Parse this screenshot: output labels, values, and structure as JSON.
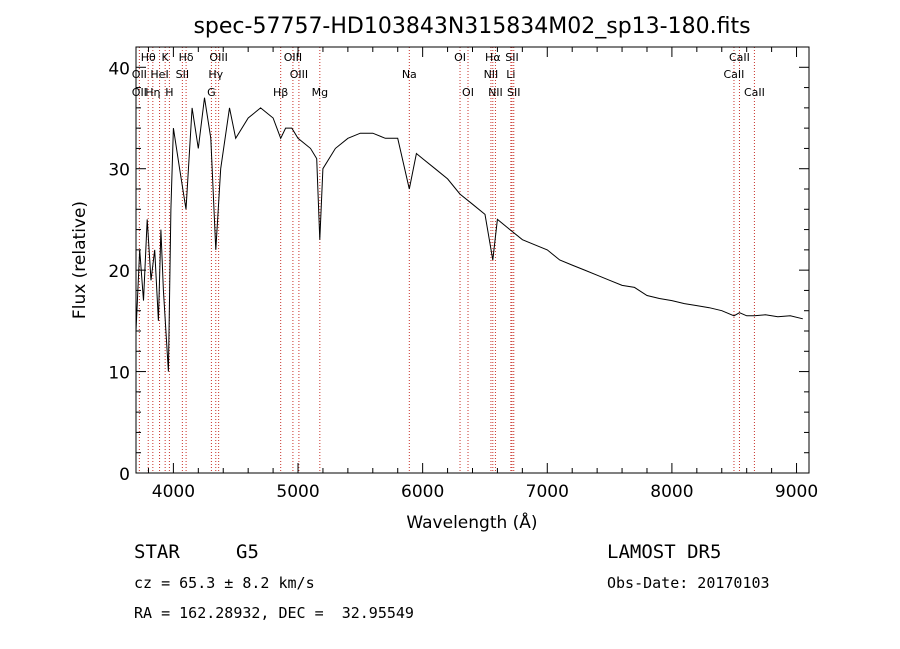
{
  "chart_data": {
    "type": "line",
    "title": "spec-57757-HD103843N315834M02_sp13-180.fits",
    "xlabel": "Wavelength (Å)",
    "ylabel": "Flux (relative)",
    "xlim": [
      3700,
      9100
    ],
    "ylim": [
      0,
      42
    ],
    "xticks": [
      4000,
      5000,
      6000,
      7000,
      8000,
      9000
    ],
    "xtick_labels": [
      "4000",
      "5000",
      "6000",
      "7000",
      "8000",
      "9000"
    ],
    "yticks": [
      0,
      10,
      20,
      30,
      40
    ],
    "ytick_labels": [
      "0",
      "10",
      "20",
      "30",
      "40"
    ],
    "grid": false,
    "series": [
      {
        "x": [
          3700,
          3730,
          3760,
          3790,
          3820,
          3850,
          3880,
          3900,
          3920,
          3940,
          3960,
          3980,
          4000,
          4050,
          4101,
          4150,
          4200,
          4250,
          4300,
          4340,
          4380,
          4450,
          4500,
          4600,
          4700,
          4800,
          4861,
          4900,
          4950,
          5000,
          5100,
          5150,
          5175,
          5200,
          5300,
          5400,
          5500,
          5600,
          5700,
          5800,
          5893,
          5950,
          6000,
          6100,
          6200,
          6300,
          6400,
          6500,
          6563,
          6600,
          6700,
          6800,
          6900,
          7000,
          7100,
          7200,
          7300,
          7400,
          7500,
          7600,
          7700,
          7800,
          7900,
          8000,
          8100,
          8200,
          8300,
          8400,
          8498,
          8542,
          8600,
          8662,
          8750,
          8850,
          8950,
          9050
        ],
        "y": [
          14,
          22,
          17,
          25,
          19,
          22,
          15,
          24,
          18,
          14,
          10,
          26,
          34,
          30,
          26,
          36,
          32,
          37,
          33,
          22,
          30,
          36,
          33,
          35,
          36,
          35,
          33,
          34,
          34,
          33,
          32,
          31,
          23,
          30,
          32,
          33,
          33.5,
          33.5,
          33,
          33,
          28,
          31.5,
          31,
          30,
          29,
          27.5,
          26.5,
          25.5,
          21,
          25,
          24,
          23,
          22.5,
          22,
          21,
          20.5,
          20,
          19.5,
          19,
          18.5,
          18.3,
          17.5,
          17.2,
          17,
          16.7,
          16.5,
          16.3,
          16,
          15.5,
          15.8,
          15.5,
          15.5,
          15.6,
          15.4,
          15.5,
          15.2
        ]
      }
    ],
    "annotations": [
      {
        "label": "Hθ",
        "x": 3798,
        "row": 0
      },
      {
        "label": "K",
        "x": 3934,
        "row": 0
      },
      {
        "label": "Hδ",
        "x": 4102,
        "row": 0
      },
      {
        "label": "OIII",
        "x": 4363,
        "row": 0
      },
      {
        "label": "OIII",
        "x": 4959,
        "row": 0
      },
      {
        "label": "OI",
        "x": 6300,
        "row": 0
      },
      {
        "label": "Hα",
        "x": 6563,
        "row": 0
      },
      {
        "label": "SII",
        "x": 6717,
        "row": 0
      },
      {
        "label": "CaII",
        "x": 8542,
        "row": 0
      },
      {
        "label": "OII",
        "x": 3727,
        "row": 1
      },
      {
        "label": "HeI",
        "x": 3889,
        "row": 1
      },
      {
        "label": "SII",
        "x": 4072,
        "row": 1
      },
      {
        "label": "Hγ",
        "x": 4340,
        "row": 1
      },
      {
        "label": "OIII",
        "x": 5007,
        "row": 1
      },
      {
        "label": "Na",
        "x": 5893,
        "row": 1
      },
      {
        "label": "NII",
        "x": 6548,
        "row": 1
      },
      {
        "label": "Li",
        "x": 6708,
        "row": 1
      },
      {
        "label": "CaII",
        "x": 8498,
        "row": 1
      },
      {
        "label": "OII",
        "x": 3727,
        "row": 2
      },
      {
        "label": "Hη",
        "x": 3835,
        "row": 2
      },
      {
        "label": "H",
        "x": 3968,
        "row": 2
      },
      {
        "label": "G",
        "x": 4305,
        "row": 2
      },
      {
        "label": "Hβ",
        "x": 4861,
        "row": 2
      },
      {
        "label": "Mg",
        "x": 5175,
        "row": 2
      },
      {
        "label": "OI",
        "x": 6364,
        "row": 2
      },
      {
        "label": "NII",
        "x": 6584,
        "row": 2
      },
      {
        "label": "SII",
        "x": 6731,
        "row": 2
      },
      {
        "label": "CaII",
        "x": 8662,
        "row": 2
      }
    ],
    "colors": {
      "spectrum": "#000000",
      "line_markers": "#c8322a",
      "background": "#ffffff"
    }
  },
  "info": {
    "class_label": "STAR",
    "subclass": "G5",
    "survey": "LAMOST DR5",
    "cz": "cz = 65.3 ± 8.2 km/s",
    "obs_date": "Obs-Date: 20170103",
    "coords": "RA = 162.28932, DEC =  32.95549"
  }
}
